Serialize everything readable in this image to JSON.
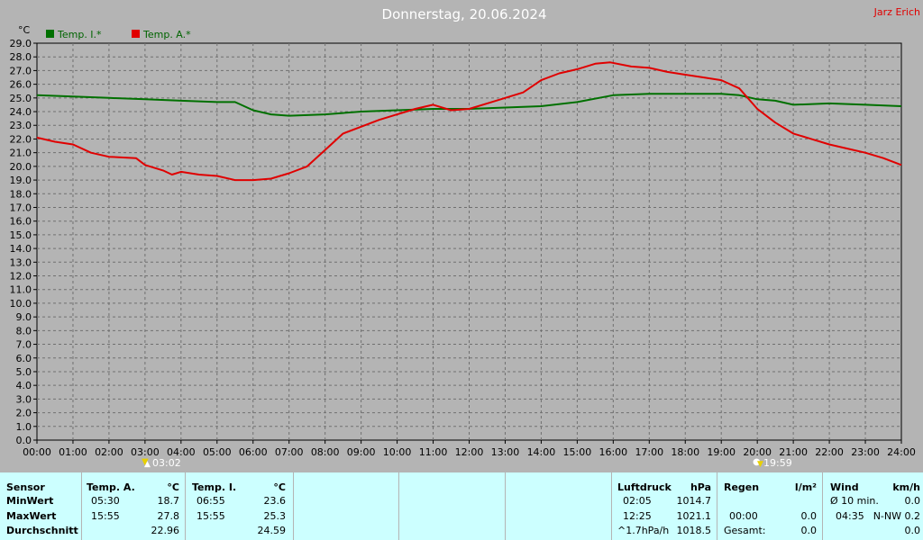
{
  "header": {
    "title": "Donnerstag, 20.06.2024",
    "author": "Jarz Erich"
  },
  "chart_data": {
    "type": "line",
    "title": "Donnerstag, 20.06.2024",
    "ylabel": "°C",
    "ylim": [
      0,
      29
    ],
    "yticks": [
      "0.0",
      "1.0",
      "2.0",
      "3.0",
      "4.0",
      "5.0",
      "6.0",
      "7.0",
      "8.0",
      "9.0",
      "10.0",
      "11.0",
      "12.0",
      "13.0",
      "14.0",
      "15.0",
      "16.0",
      "17.0",
      "18.0",
      "19.0",
      "20.0",
      "21.0",
      "22.0",
      "23.0",
      "24.0",
      "25.0",
      "26.0",
      "27.0",
      "28.0",
      "29.0"
    ],
    "xticks": [
      "00:00",
      "01:00",
      "02:00",
      "03:00",
      "04:00",
      "05:00",
      "06:00",
      "07:00",
      "08:00",
      "09:00",
      "10:00",
      "11:00",
      "12:00",
      "13:00",
      "14:00",
      "15:00",
      "16:00",
      "17:00",
      "18:00",
      "19:00",
      "20:00",
      "21:00",
      "22:00",
      "23:00",
      "24:00"
    ],
    "grid": true,
    "legend": "top-left",
    "series": [
      {
        "name": "Temp. I.*",
        "color": "#007000",
        "x": [
          0,
          1,
          2,
          3,
          4,
          5,
          5.5,
          6,
          6.5,
          7,
          8,
          9,
          10,
          11,
          12,
          13,
          14,
          15,
          16,
          17,
          18,
          19,
          19.5,
          20,
          20.5,
          21,
          22,
          23,
          24
        ],
        "y": [
          25.2,
          25.1,
          25.0,
          24.9,
          24.8,
          24.7,
          24.7,
          24.1,
          23.8,
          23.7,
          23.8,
          24.0,
          24.1,
          24.2,
          24.2,
          24.3,
          24.4,
          24.7,
          25.2,
          25.3,
          25.3,
          25.3,
          25.2,
          24.9,
          24.8,
          24.5,
          24.6,
          24.5,
          24.4
        ]
      },
      {
        "name": "Temp. A.*",
        "color": "#e00000",
        "x": [
          0,
          0.5,
          1,
          1.5,
          2,
          2.75,
          3,
          3.5,
          3.75,
          4,
          4.5,
          5,
          5.5,
          6,
          6.5,
          7,
          7.5,
          8,
          8.5,
          9,
          9.5,
          10,
          10.5,
          11,
          11.5,
          12,
          12.5,
          13,
          13.5,
          14,
          14.5,
          15,
          15.5,
          15.92,
          16.5,
          17,
          17.5,
          18,
          18.5,
          19,
          19.5,
          20,
          20.5,
          21,
          21.5,
          22,
          22.5,
          23,
          23.5,
          24
        ],
        "y": [
          22.1,
          21.8,
          21.6,
          21.0,
          20.7,
          20.6,
          20.1,
          19.7,
          19.4,
          19.6,
          19.4,
          19.3,
          19.0,
          19.0,
          19.1,
          19.5,
          20.0,
          21.2,
          22.4,
          22.9,
          23.4,
          23.8,
          24.2,
          24.5,
          24.1,
          24.2,
          24.6,
          25.0,
          25.4,
          26.3,
          26.8,
          27.1,
          27.5,
          27.6,
          27.3,
          27.2,
          26.9,
          26.7,
          26.5,
          26.3,
          25.7,
          24.2,
          23.2,
          22.4,
          22.0,
          21.6,
          21.3,
          21.0,
          20.6,
          20.1
        ]
      }
    ],
    "markers": {
      "sunrise": "03:02",
      "sunset": "19:59"
    }
  },
  "stats": {
    "sensor_col": {
      "header": "Sensor",
      "rows": [
        "MinWert",
        "MaxWert",
        "Durchschnitt"
      ]
    },
    "temp_a": {
      "header": "Temp. A.",
      "unit": "°C",
      "min_time": "05:30",
      "min_val": "18.7",
      "max_time": "15:55",
      "max_val": "27.8",
      "avg": "22.96"
    },
    "temp_i": {
      "header": "Temp. I.",
      "unit": "°C",
      "min_time": "06:55",
      "min_val": "23.6",
      "max_time": "15:55",
      "max_val": "25.3",
      "avg": "24.59"
    },
    "luftdruck": {
      "header": "Luftdruck",
      "unit": "hPa",
      "min_time": "02:05",
      "min_val": "1014.7",
      "max_time": "12:25",
      "max_val": "1021.1",
      "trend": "^1.7hPa/h",
      "current": "1018.5"
    },
    "regen": {
      "header": "Regen",
      "unit": "l/m²",
      "time": "00:00",
      "val": "0.0",
      "total_label": "Gesamt:",
      "total": "0.0"
    },
    "wind": {
      "header": "Wind",
      "unit": "km/h",
      "avg_label": "Ø 10 min.",
      "avg_val": "0.0",
      "max_time": "04:35",
      "max_dir_val": "N-NW 0.2",
      "last": "0.0"
    }
  }
}
